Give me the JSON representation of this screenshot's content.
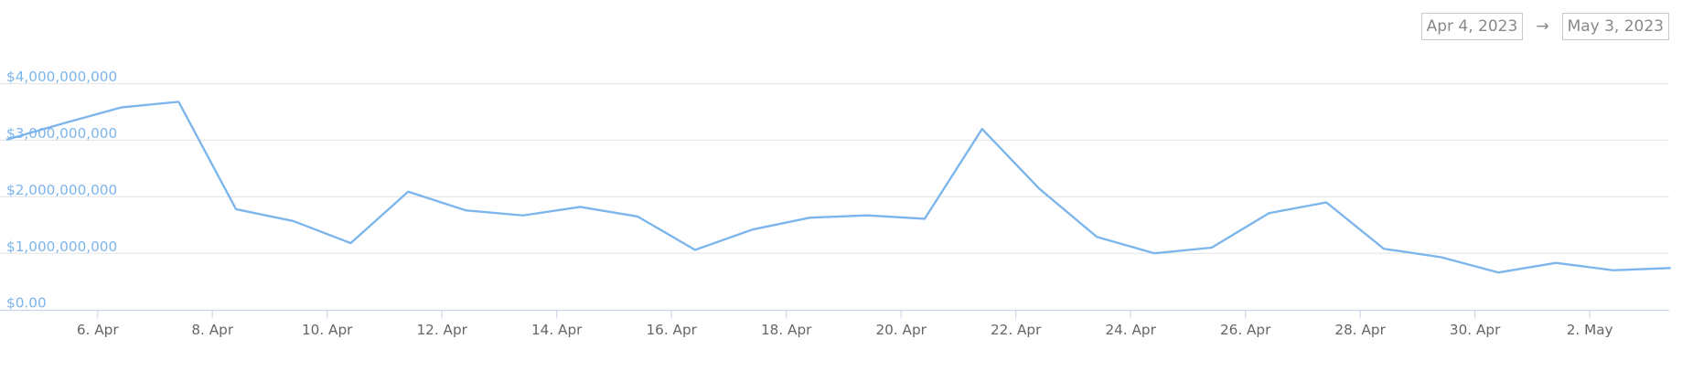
{
  "date_range": {
    "from": "Apr 4, 2023",
    "separator": "→",
    "to": "May 3, 2023"
  },
  "chart_data": {
    "type": "line",
    "categories": [
      null,
      null,
      "6. Apr",
      null,
      "8. Apr",
      null,
      "10. Apr",
      null,
      "12. Apr",
      null,
      "14. Apr",
      null,
      "16. Apr",
      null,
      "18. Apr",
      null,
      "20. Apr",
      null,
      "22. Apr",
      null,
      "24. Apr",
      null,
      "26. Apr",
      null,
      "28. Apr",
      null,
      "30. Apr",
      null,
      "2. May",
      null
    ],
    "series": [
      {
        "color": "#7cb5ec",
        "values": [
          3010000000,
          3300000000,
          3580000000,
          3680000000,
          1780000000,
          1570000000,
          1180000000,
          2090000000,
          1760000000,
          1670000000,
          1820000000,
          1650000000,
          1060000000,
          1420000000,
          1630000000,
          1670000000,
          1610000000,
          3200000000,
          2140000000,
          1290000000,
          1000000000,
          1100000000,
          1710000000,
          1900000000,
          1080000000,
          930000000,
          660000000,
          830000000,
          700000000,
          740000000
        ]
      }
    ],
    "ylim": [
      0,
      4000000000
    ],
    "yticks": [
      {
        "value": 0,
        "label": "$0.00"
      },
      {
        "value": 1000000000,
        "label": "$1,000,000,000"
      },
      {
        "value": 2000000000,
        "label": "$2,000,000,000"
      },
      {
        "value": 3000000000,
        "label": "$3,000,000,000"
      },
      {
        "value": 4000000000,
        "label": "$4,000,000,000"
      }
    ],
    "grid": true
  }
}
